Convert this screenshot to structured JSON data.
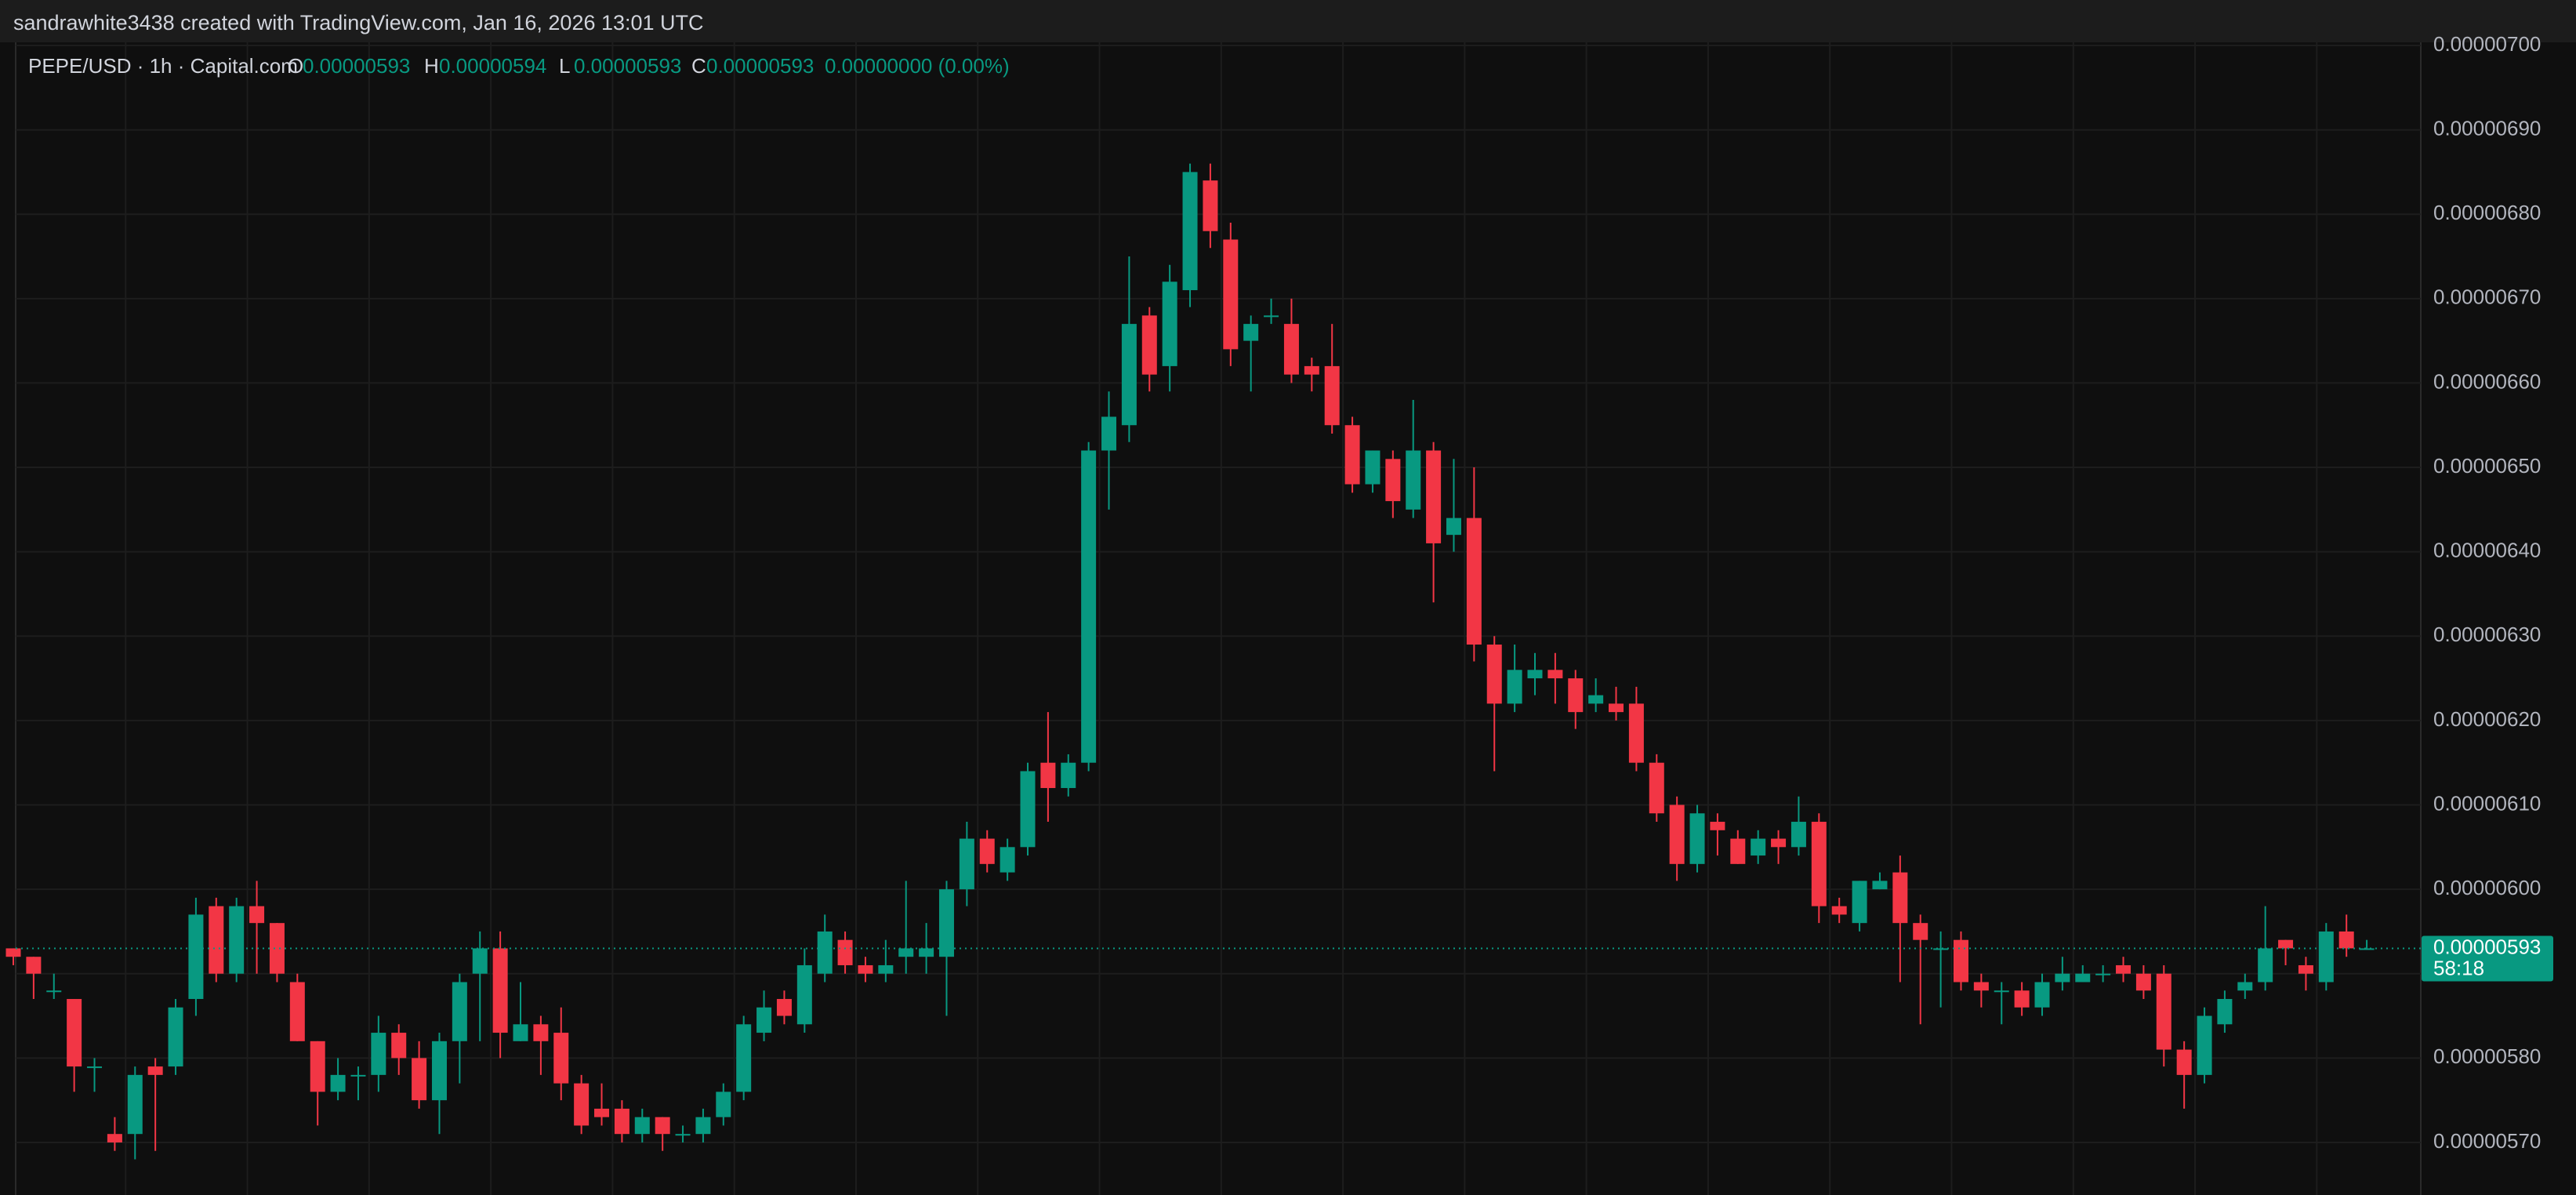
{
  "chart_data": {
    "type": "candlestick",
    "attribution": "sandrawhite3438 created with TradingView.com, Jan 16, 2026 13:01 UTC",
    "title": "PEPE/USD · 1h · Capital.com",
    "legend_ohlc": [
      {
        "key": "O",
        "value": "0.00000593"
      },
      {
        "key": "H",
        "value": "0.00000594"
      },
      {
        "key": "L",
        "value": "0.00000593"
      },
      {
        "key": "C",
        "value": "0.00000593"
      }
    ],
    "change": "0.00000000 (0.00%)",
    "price_tag": "0.00000593",
    "countdown": "58:18",
    "up_color": "#089981",
    "down_color": "#f23645",
    "grid": true,
    "ylim": [
      5.6377e-06,
      7.0037e-06
    ],
    "yticks": [
      {
        "value": 5.7e-06,
        "label": "0.00000570"
      },
      {
        "value": 5.8e-06,
        "label": "0.00000580"
      },
      {
        "value": 5.9e-06,
        "label": "0.00000590"
      },
      {
        "value": 6e-06,
        "label": "0.00000600"
      },
      {
        "value": 6.1e-06,
        "label": "0.00000610"
      },
      {
        "value": 6.2e-06,
        "label": "0.00000620"
      },
      {
        "value": 6.3e-06,
        "label": "0.00000630"
      },
      {
        "value": 6.4e-06,
        "label": "0.00000640"
      },
      {
        "value": 6.5e-06,
        "label": "0.00000650"
      },
      {
        "value": 6.6e-06,
        "label": "0.00000660"
      },
      {
        "value": 6.7e-06,
        "label": "0.00000670"
      },
      {
        "value": 6.8e-06,
        "label": "0.00000680"
      },
      {
        "value": 6.9e-06,
        "label": "0.00000690"
      },
      {
        "value": 7e-06,
        "label": "0.00000700"
      }
    ],
    "open": [
      5.93e-06,
      5.92e-06,
      5.88e-06,
      5.87e-06,
      5.79e-06,
      5.71e-06,
      5.71e-06,
      5.79e-06,
      5.79e-06,
      5.87e-06,
      5.98e-06,
      5.9e-06,
      5.98e-06,
      5.96e-06,
      5.89e-06,
      5.82e-06,
      5.76e-06,
      5.78e-06,
      5.78e-06,
      5.83e-06,
      5.8e-06,
      5.75e-06,
      5.82e-06,
      5.9e-06,
      5.93e-06,
      5.82e-06,
      5.84e-06,
      5.83e-06,
      5.77e-06,
      5.74e-06,
      5.74e-06,
      5.71e-06,
      5.73e-06,
      5.71e-06,
      5.71e-06,
      5.73e-06,
      5.76e-06,
      5.83e-06,
      5.87e-06,
      5.84e-06,
      5.9e-06,
      5.94e-06,
      5.91e-06,
      5.9e-06,
      5.92e-06,
      5.92e-06,
      5.92e-06,
      6e-06,
      6.06e-06,
      6.02e-06,
      6.05e-06,
      6.15e-06,
      6.12e-06,
      6.15e-06,
      6.52e-06,
      6.55e-06,
      6.68e-06,
      6.62e-06,
      6.71e-06,
      6.84e-06,
      6.77e-06,
      6.65e-06,
      6.68e-06,
      6.67e-06,
      6.62e-06,
      6.62e-06,
      6.55e-06,
      6.48e-06,
      6.51e-06,
      6.45e-06,
      6.52e-06,
      6.42e-06,
      6.44e-06,
      6.29e-06,
      6.22e-06,
      6.25e-06,
      6.26e-06,
      6.25e-06,
      6.22e-06,
      6.22e-06,
      6.22e-06,
      6.15e-06,
      6.1e-06,
      6.03e-06,
      6.08e-06,
      6.06e-06,
      6.04e-06,
      6.06e-06,
      6.05e-06,
      6.08e-06,
      5.98e-06,
      5.96e-06,
      6e-06,
      6.02e-06,
      5.96e-06,
      5.93e-06,
      5.94e-06,
      5.89e-06,
      5.88e-06,
      5.88e-06,
      5.86e-06,
      5.89e-06,
      5.89e-06,
      5.9e-06,
      5.91e-06,
      5.9e-06,
      5.9e-06,
      5.81e-06,
      5.78e-06,
      5.84e-06,
      5.88e-06,
      5.89e-06,
      5.94e-06,
      5.91e-06,
      5.89e-06,
      5.95e-06,
      5.93e-06
    ],
    "high": [
      5.93e-06,
      5.92e-06,
      5.9e-06,
      5.87e-06,
      5.8e-06,
      5.73e-06,
      5.79e-06,
      5.8e-06,
      5.87e-06,
      5.99e-06,
      5.99e-06,
      5.99e-06,
      6.01e-06,
      5.96e-06,
      5.9e-06,
      5.82e-06,
      5.8e-06,
      5.79e-06,
      5.85e-06,
      5.84e-06,
      5.82e-06,
      5.83e-06,
      5.9e-06,
      5.95e-06,
      5.95e-06,
      5.89e-06,
      5.85e-06,
      5.86e-06,
      5.78e-06,
      5.77e-06,
      5.75e-06,
      5.74e-06,
      5.73e-06,
      5.72e-06,
      5.74e-06,
      5.77e-06,
      5.85e-06,
      5.88e-06,
      5.88e-06,
      5.93e-06,
      5.97e-06,
      5.95e-06,
      5.92e-06,
      5.94e-06,
      6.01e-06,
      5.96e-06,
      6.01e-06,
      6.08e-06,
      6.07e-06,
      6.06e-06,
      6.15e-06,
      6.21e-06,
      6.16e-06,
      6.53e-06,
      6.59e-06,
      6.75e-06,
      6.69e-06,
      6.74e-06,
      6.86e-06,
      6.86e-06,
      6.79e-06,
      6.68e-06,
      6.7e-06,
      6.7e-06,
      6.63e-06,
      6.67e-06,
      6.56e-06,
      6.52e-06,
      6.52e-06,
      6.58e-06,
      6.53e-06,
      6.51e-06,
      6.5e-06,
      6.3e-06,
      6.29e-06,
      6.28e-06,
      6.28e-06,
      6.26e-06,
      6.25e-06,
      6.24e-06,
      6.24e-06,
      6.16e-06,
      6.11e-06,
      6.1e-06,
      6.09e-06,
      6.07e-06,
      6.07e-06,
      6.07e-06,
      6.11e-06,
      6.09e-06,
      5.99e-06,
      6.01e-06,
      6.02e-06,
      6.04e-06,
      5.97e-06,
      5.95e-06,
      5.95e-06,
      5.9e-06,
      5.89e-06,
      5.89e-06,
      5.9e-06,
      5.92e-06,
      5.91e-06,
      5.91e-06,
      5.92e-06,
      5.91e-06,
      5.91e-06,
      5.82e-06,
      5.86e-06,
      5.88e-06,
      5.9e-06,
      5.98e-06,
      5.94e-06,
      5.92e-06,
      5.96e-06,
      5.97e-06,
      5.94e-06
    ],
    "low": [
      5.91e-06,
      5.87e-06,
      5.87e-06,
      5.76e-06,
      5.76e-06,
      5.69e-06,
      5.68e-06,
      5.69e-06,
      5.78e-06,
      5.85e-06,
      5.89e-06,
      5.89e-06,
      5.9e-06,
      5.89e-06,
      5.82e-06,
      5.72e-06,
      5.75e-06,
      5.75e-06,
      5.76e-06,
      5.78e-06,
      5.74e-06,
      5.71e-06,
      5.77e-06,
      5.82e-06,
      5.8e-06,
      5.82e-06,
      5.78e-06,
      5.75e-06,
      5.71e-06,
      5.72e-06,
      5.7e-06,
      5.7e-06,
      5.69e-06,
      5.7e-06,
      5.7e-06,
      5.72e-06,
      5.75e-06,
      5.82e-06,
      5.84e-06,
      5.83e-06,
      5.89e-06,
      5.9e-06,
      5.89e-06,
      5.89e-06,
      5.9e-06,
      5.9e-06,
      5.85e-06,
      5.98e-06,
      6.02e-06,
      6.01e-06,
      6.04e-06,
      6.08e-06,
      6.11e-06,
      6.14e-06,
      6.45e-06,
      6.53e-06,
      6.59e-06,
      6.59e-06,
      6.69e-06,
      6.76e-06,
      6.62e-06,
      6.59e-06,
      6.67e-06,
      6.6e-06,
      6.59e-06,
      6.54e-06,
      6.47e-06,
      6.47e-06,
      6.44e-06,
      6.44e-06,
      6.34e-06,
      6.4e-06,
      6.27e-06,
      6.14e-06,
      6.21e-06,
      6.23e-06,
      6.22e-06,
      6.19e-06,
      6.21e-06,
      6.2e-06,
      6.14e-06,
      6.08e-06,
      6.01e-06,
      6.02e-06,
      6.04e-06,
      6.03e-06,
      6.03e-06,
      6.03e-06,
      6.04e-06,
      5.96e-06,
      5.96e-06,
      5.95e-06,
      6e-06,
      5.89e-06,
      5.84e-06,
      5.86e-06,
      5.88e-06,
      5.86e-06,
      5.84e-06,
      5.85e-06,
      5.85e-06,
      5.88e-06,
      5.89e-06,
      5.89e-06,
      5.89e-06,
      5.87e-06,
      5.79e-06,
      5.74e-06,
      5.77e-06,
      5.83e-06,
      5.87e-06,
      5.88e-06,
      5.91e-06,
      5.88e-06,
      5.88e-06,
      5.92e-06,
      5.93e-06
    ],
    "close": [
      5.92e-06,
      5.9e-06,
      5.88e-06,
      5.79e-06,
      5.79e-06,
      5.7e-06,
      5.78e-06,
      5.78e-06,
      5.86e-06,
      5.97e-06,
      5.9e-06,
      5.98e-06,
      5.96e-06,
      5.9e-06,
      5.82e-06,
      5.76e-06,
      5.78e-06,
      5.78e-06,
      5.83e-06,
      5.8e-06,
      5.75e-06,
      5.82e-06,
      5.89e-06,
      5.93e-06,
      5.83e-06,
      5.84e-06,
      5.82e-06,
      5.77e-06,
      5.72e-06,
      5.73e-06,
      5.71e-06,
      5.73e-06,
      5.71e-06,
      5.71e-06,
      5.73e-06,
      5.76e-06,
      5.84e-06,
      5.86e-06,
      5.85e-06,
      5.91e-06,
      5.95e-06,
      5.91e-06,
      5.9e-06,
      5.91e-06,
      5.93e-06,
      5.93e-06,
      6e-06,
      6.06e-06,
      6.03e-06,
      6.05e-06,
      6.14e-06,
      6.12e-06,
      6.15e-06,
      6.52e-06,
      6.56e-06,
      6.67e-06,
      6.61e-06,
      6.72e-06,
      6.85e-06,
      6.78e-06,
      6.64e-06,
      6.67e-06,
      6.68e-06,
      6.61e-06,
      6.61e-06,
      6.55e-06,
      6.48e-06,
      6.52e-06,
      6.46e-06,
      6.52e-06,
      6.41e-06,
      6.44e-06,
      6.29e-06,
      6.22e-06,
      6.26e-06,
      6.26e-06,
      6.25e-06,
      6.21e-06,
      6.23e-06,
      6.21e-06,
      6.15e-06,
      6.09e-06,
      6.03e-06,
      6.09e-06,
      6.07e-06,
      6.03e-06,
      6.06e-06,
      6.05e-06,
      6.08e-06,
      5.98e-06,
      5.97e-06,
      6.01e-06,
      6.01e-06,
      5.96e-06,
      5.94e-06,
      5.93e-06,
      5.89e-06,
      5.88e-06,
      5.88e-06,
      5.86e-06,
      5.89e-06,
      5.9e-06,
      5.9e-06,
      5.9e-06,
      5.9e-06,
      5.88e-06,
      5.81e-06,
      5.78e-06,
      5.85e-06,
      5.87e-06,
      5.89e-06,
      5.93e-06,
      5.93e-06,
      5.9e-06,
      5.95e-06,
      5.93e-06,
      5.93e-06
    ]
  }
}
